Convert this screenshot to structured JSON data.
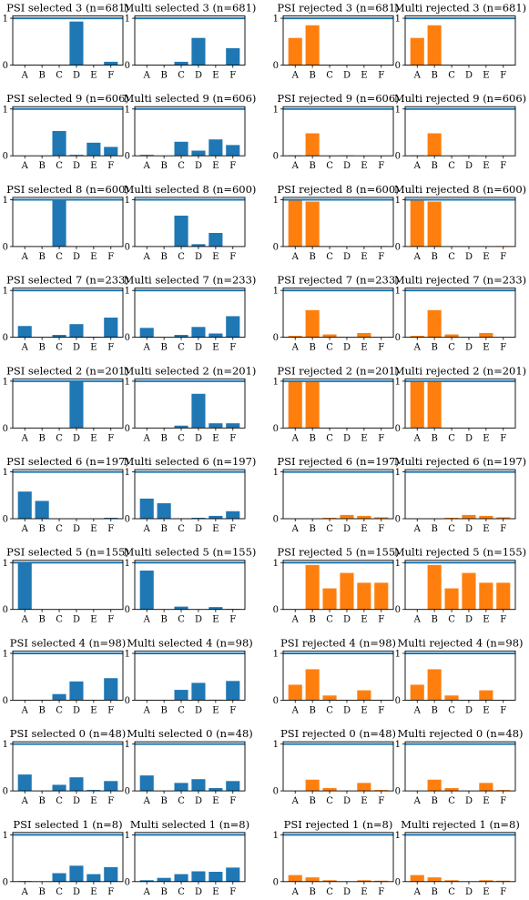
{
  "figure": {
    "colors": {
      "selected": "#1f77b4",
      "rejected": "#ff7f0e",
      "refline": "#1f77b4"
    }
  },
  "chart_data": [
    {
      "type": "bar",
      "title": "PSI selected 3 (n=681)",
      "categories": [
        "A",
        "B",
        "C",
        "D",
        "E",
        "F"
      ],
      "values": [
        0,
        0,
        0,
        0.93,
        0,
        0.07
      ],
      "ylim": [
        0,
        1.05
      ],
      "yticks": [
        0,
        1
      ],
      "color": "selected"
    },
    {
      "type": "bar",
      "title": "Multi selected 3 (n=681)",
      "categories": [
        "A",
        "B",
        "C",
        "D",
        "E",
        "F"
      ],
      "values": [
        0,
        0,
        0.07,
        0.58,
        0,
        0.36
      ],
      "ylim": [
        0,
        1.05
      ],
      "yticks": [
        0,
        1
      ],
      "color": "selected"
    },
    {
      "type": "bar",
      "title": "PSI rejected 3 (n=681)",
      "categories": [
        "A",
        "B",
        "C",
        "D",
        "E",
        "F"
      ],
      "values": [
        0.58,
        0.85,
        0,
        0,
        0,
        0
      ],
      "ylim": [
        0,
        1.05
      ],
      "yticks": [
        0,
        1
      ],
      "color": "rejected"
    },
    {
      "type": "bar",
      "title": "Multi rejected 3 (n=681)",
      "categories": [
        "A",
        "B",
        "C",
        "D",
        "E",
        "F"
      ],
      "values": [
        0.58,
        0.85,
        0,
        0,
        0,
        0
      ],
      "ylim": [
        0,
        1.05
      ],
      "yticks": [
        0,
        1
      ],
      "color": "rejected"
    },
    {
      "type": "bar",
      "title": "PSI selected 9 (n=606)",
      "categories": [
        "A",
        "B",
        "C",
        "D",
        "E",
        "F"
      ],
      "values": [
        0,
        0,
        0.53,
        0.02,
        0.28,
        0.19
      ],
      "ylim": [
        0,
        1.05
      ],
      "yticks": [
        0,
        1
      ],
      "color": "selected"
    },
    {
      "type": "bar",
      "title": "Multi selected 9 (n=606)",
      "categories": [
        "A",
        "B",
        "C",
        "D",
        "E",
        "F"
      ],
      "values": [
        0.02,
        0,
        0.3,
        0.11,
        0.35,
        0.23
      ],
      "ylim": [
        0,
        1.05
      ],
      "yticks": [
        0,
        1
      ],
      "color": "selected"
    },
    {
      "type": "bar",
      "title": "PSI rejected 9 (n=606)",
      "categories": [
        "A",
        "B",
        "C",
        "D",
        "E",
        "F"
      ],
      "values": [
        0.01,
        0.48,
        0,
        0.01,
        0,
        0
      ],
      "ylim": [
        0,
        1.05
      ],
      "yticks": [
        0,
        1
      ],
      "color": "rejected"
    },
    {
      "type": "bar",
      "title": "Multi rejected 9 (n=606)",
      "categories": [
        "A",
        "B",
        "C",
        "D",
        "E",
        "F"
      ],
      "values": [
        0.01,
        0.48,
        0,
        0.01,
        0,
        0
      ],
      "ylim": [
        0,
        1.05
      ],
      "yticks": [
        0,
        1
      ],
      "color": "rejected"
    },
    {
      "type": "bar",
      "title": "PSI selected 8 (n=600)",
      "categories": [
        "A",
        "B",
        "C",
        "D",
        "E",
        "F"
      ],
      "values": [
        0,
        0,
        1.0,
        0,
        0,
        0
      ],
      "ylim": [
        0,
        1.05
      ],
      "yticks": [
        0,
        1
      ],
      "color": "selected"
    },
    {
      "type": "bar",
      "title": "Multi selected 8 (n=600)",
      "categories": [
        "A",
        "B",
        "C",
        "D",
        "E",
        "F"
      ],
      "values": [
        0,
        0,
        0.66,
        0.05,
        0.29,
        0
      ],
      "ylim": [
        0,
        1.05
      ],
      "yticks": [
        0,
        1
      ],
      "color": "selected"
    },
    {
      "type": "bar",
      "title": "PSI rejected 8 (n=600)",
      "categories": [
        "A",
        "B",
        "C",
        "D",
        "E",
        "F"
      ],
      "values": [
        1.0,
        0.96,
        0,
        0,
        0,
        0.01
      ],
      "ylim": [
        0,
        1.05
      ],
      "yticks": [
        0,
        1
      ],
      "color": "rejected"
    },
    {
      "type": "bar",
      "title": "Multi rejected 8 (n=600)",
      "categories": [
        "A",
        "B",
        "C",
        "D",
        "E",
        "F"
      ],
      "values": [
        1.0,
        0.96,
        0,
        0,
        0,
        0.01
      ],
      "ylim": [
        0,
        1.05
      ],
      "yticks": [
        0,
        1
      ],
      "color": "rejected"
    },
    {
      "type": "bar",
      "title": "PSI selected 7 (n=233)",
      "categories": [
        "A",
        "B",
        "C",
        "D",
        "E",
        "F"
      ],
      "values": [
        0.24,
        0,
        0.05,
        0.28,
        0.01,
        0.42
      ],
      "ylim": [
        0,
        1.05
      ],
      "yticks": [
        0,
        1
      ],
      "color": "selected"
    },
    {
      "type": "bar",
      "title": "Multi selected 7 (n=233)",
      "categories": [
        "A",
        "B",
        "C",
        "D",
        "E",
        "F"
      ],
      "values": [
        0.2,
        0,
        0.05,
        0.22,
        0.08,
        0.45
      ],
      "ylim": [
        0,
        1.05
      ],
      "yticks": [
        0,
        1
      ],
      "color": "selected"
    },
    {
      "type": "bar",
      "title": "PSI rejected 7 (n=233)",
      "categories": [
        "A",
        "B",
        "C",
        "D",
        "E",
        "F"
      ],
      "values": [
        0.03,
        0.58,
        0.06,
        0,
        0.09,
        0
      ],
      "ylim": [
        0,
        1.05
      ],
      "yticks": [
        0,
        1
      ],
      "color": "rejected"
    },
    {
      "type": "bar",
      "title": "Multi rejected 7 (n=233)",
      "categories": [
        "A",
        "B",
        "C",
        "D",
        "E",
        "F"
      ],
      "values": [
        0.03,
        0.58,
        0.06,
        0,
        0.09,
        0
      ],
      "ylim": [
        0,
        1.05
      ],
      "yticks": [
        0,
        1
      ],
      "color": "rejected"
    },
    {
      "type": "bar",
      "title": "PSI selected 2 (n=201)",
      "categories": [
        "A",
        "B",
        "C",
        "D",
        "E",
        "F"
      ],
      "values": [
        0,
        0,
        0,
        1.0,
        0,
        0
      ],
      "ylim": [
        0,
        1.05
      ],
      "yticks": [
        0,
        1
      ],
      "color": "selected"
    },
    {
      "type": "bar",
      "title": "Multi selected 2 (n=201)",
      "categories": [
        "A",
        "B",
        "C",
        "D",
        "E",
        "F"
      ],
      "values": [
        0,
        0,
        0.05,
        0.73,
        0.1,
        0.1
      ],
      "ylim": [
        0,
        1.05
      ],
      "yticks": [
        0,
        1
      ],
      "color": "selected"
    },
    {
      "type": "bar",
      "title": "PSI rejected 2 (n=201)",
      "categories": [
        "A",
        "B",
        "C",
        "D",
        "E",
        "F"
      ],
      "values": [
        1.0,
        1.0,
        0,
        0,
        0,
        0
      ],
      "ylim": [
        0,
        1.05
      ],
      "yticks": [
        0,
        1
      ],
      "color": "rejected"
    },
    {
      "type": "bar",
      "title": "Multi rejected 2 (n=201)",
      "categories": [
        "A",
        "B",
        "C",
        "D",
        "E",
        "F"
      ],
      "values": [
        1.0,
        1.0,
        0,
        0,
        0,
        0
      ],
      "ylim": [
        0,
        1.05
      ],
      "yticks": [
        0,
        1
      ],
      "color": "rejected"
    },
    {
      "type": "bar",
      "title": "PSI selected 6 (n=197)",
      "categories": [
        "A",
        "B",
        "C",
        "D",
        "E",
        "F"
      ],
      "values": [
        0.58,
        0.38,
        0,
        0,
        0,
        0.02
      ],
      "ylim": [
        0,
        1.05
      ],
      "yticks": [
        0,
        1
      ],
      "color": "selected"
    },
    {
      "type": "bar",
      "title": "Multi selected 6 (n=197)",
      "categories": [
        "A",
        "B",
        "C",
        "D",
        "E",
        "F"
      ],
      "values": [
        0.43,
        0.33,
        0.01,
        0.02,
        0.06,
        0.16
      ],
      "ylim": [
        0,
        1.05
      ],
      "yticks": [
        0,
        1
      ],
      "color": "selected"
    },
    {
      "type": "bar",
      "title": "PSI rejected 6 (n=197)",
      "categories": [
        "A",
        "B",
        "C",
        "D",
        "E",
        "F"
      ],
      "values": [
        0,
        0,
        0.02,
        0.08,
        0.06,
        0.03
      ],
      "ylim": [
        0,
        1.05
      ],
      "yticks": [
        0,
        1
      ],
      "color": "rejected"
    },
    {
      "type": "bar",
      "title": "Multi rejected 6 (n=197)",
      "categories": [
        "A",
        "B",
        "C",
        "D",
        "E",
        "F"
      ],
      "values": [
        0,
        0,
        0.02,
        0.08,
        0.06,
        0.03
      ],
      "ylim": [
        0,
        1.05
      ],
      "yticks": [
        0,
        1
      ],
      "color": "rejected"
    },
    {
      "type": "bar",
      "title": "PSI selected 5 (n=155)",
      "categories": [
        "A",
        "B",
        "C",
        "D",
        "E",
        "F"
      ],
      "values": [
        1.0,
        0,
        0,
        0,
        0,
        0
      ],
      "ylim": [
        0,
        1.05
      ],
      "yticks": [
        0,
        1
      ],
      "color": "selected"
    },
    {
      "type": "bar",
      "title": "Multi selected 5 (n=155)",
      "categories": [
        "A",
        "B",
        "C",
        "D",
        "E",
        "F"
      ],
      "values": [
        0.83,
        0,
        0.06,
        0,
        0.05,
        0.01
      ],
      "ylim": [
        0,
        1.05
      ],
      "yticks": [
        0,
        1
      ],
      "color": "selected"
    },
    {
      "type": "bar",
      "title": "PSI rejected 5 (n=155)",
      "categories": [
        "A",
        "B",
        "C",
        "D",
        "E",
        "F"
      ],
      "values": [
        0,
        0.95,
        0.45,
        0.78,
        0.57,
        0.57
      ],
      "ylim": [
        0,
        1.05
      ],
      "yticks": [
        0,
        1
      ],
      "color": "rejected"
    },
    {
      "type": "bar",
      "title": "Multi rejected 5 (n=155)",
      "categories": [
        "A",
        "B",
        "C",
        "D",
        "E",
        "F"
      ],
      "values": [
        0,
        0.95,
        0.45,
        0.78,
        0.57,
        0.57
      ],
      "ylim": [
        0,
        1.05
      ],
      "yticks": [
        0,
        1
      ],
      "color": "rejected"
    },
    {
      "type": "bar",
      "title": "PSI selected 4 (n=98)",
      "categories": [
        "A",
        "B",
        "C",
        "D",
        "E",
        "F"
      ],
      "values": [
        0,
        0,
        0.13,
        0.4,
        0,
        0.47
      ],
      "ylim": [
        0,
        1.05
      ],
      "yticks": [
        0,
        1
      ],
      "color": "selected"
    },
    {
      "type": "bar",
      "title": "Multi selected 4 (n=98)",
      "categories": [
        "A",
        "B",
        "C",
        "D",
        "E",
        "F"
      ],
      "values": [
        0,
        0,
        0.22,
        0.37,
        0.01,
        0.41
      ],
      "ylim": [
        0,
        1.05
      ],
      "yticks": [
        0,
        1
      ],
      "color": "selected"
    },
    {
      "type": "bar",
      "title": "PSI rejected 4 (n=98)",
      "categories": [
        "A",
        "B",
        "C",
        "D",
        "E",
        "F"
      ],
      "values": [
        0.33,
        0.66,
        0.1,
        0,
        0.21,
        0
      ],
      "ylim": [
        0,
        1.05
      ],
      "yticks": [
        0,
        1
      ],
      "color": "rejected"
    },
    {
      "type": "bar",
      "title": "Multi rejected 4 (n=98)",
      "categories": [
        "A",
        "B",
        "C",
        "D",
        "E",
        "F"
      ],
      "values": [
        0.33,
        0.66,
        0.1,
        0,
        0.21,
        0
      ],
      "ylim": [
        0,
        1.05
      ],
      "yticks": [
        0,
        1
      ],
      "color": "rejected"
    },
    {
      "type": "bar",
      "title": "PSI selected 0 (n=48)",
      "categories": [
        "A",
        "B",
        "C",
        "D",
        "E",
        "F"
      ],
      "values": [
        0.35,
        0,
        0.13,
        0.29,
        0.02,
        0.21
      ],
      "ylim": [
        0,
        1.05
      ],
      "yticks": [
        0,
        1
      ],
      "color": "selected"
    },
    {
      "type": "bar",
      "title": "Multi selected 0 (n=48)",
      "categories": [
        "A",
        "B",
        "C",
        "D",
        "E",
        "F"
      ],
      "values": [
        0.33,
        0,
        0.17,
        0.25,
        0.06,
        0.21
      ],
      "ylim": [
        0,
        1.05
      ],
      "yticks": [
        0,
        1
      ],
      "color": "selected"
    },
    {
      "type": "bar",
      "title": "PSI rejected 0 (n=48)",
      "categories": [
        "A",
        "B",
        "C",
        "D",
        "E",
        "F"
      ],
      "values": [
        0,
        0.24,
        0.06,
        0,
        0.17,
        0.02
      ],
      "ylim": [
        0,
        1.05
      ],
      "yticks": [
        0,
        1
      ],
      "color": "rejected"
    },
    {
      "type": "bar",
      "title": "Multi rejected 0 (n=48)",
      "categories": [
        "A",
        "B",
        "C",
        "D",
        "E",
        "F"
      ],
      "values": [
        0,
        0.24,
        0.06,
        0,
        0.17,
        0.02
      ],
      "ylim": [
        0,
        1.05
      ],
      "yticks": [
        0,
        1
      ],
      "color": "rejected"
    },
    {
      "type": "bar",
      "title": "PSI selected 1 (n=8)",
      "categories": [
        "A",
        "B",
        "C",
        "D",
        "E",
        "F"
      ],
      "values": [
        0.01,
        0,
        0.18,
        0.34,
        0.16,
        0.31
      ],
      "ylim": [
        0,
        1.05
      ],
      "yticks": [
        0,
        1
      ],
      "color": "selected"
    },
    {
      "type": "bar",
      "title": "Multi selected 1 (n=8)",
      "categories": [
        "A",
        "B",
        "C",
        "D",
        "E",
        "F"
      ],
      "values": [
        0.03,
        0.08,
        0.16,
        0.22,
        0.21,
        0.3
      ],
      "ylim": [
        0,
        1.05
      ],
      "yticks": [
        0,
        1
      ],
      "color": "selected"
    },
    {
      "type": "bar",
      "title": "PSI rejected 1 (n=8)",
      "categories": [
        "A",
        "B",
        "C",
        "D",
        "E",
        "F"
      ],
      "values": [
        0.14,
        0.09,
        0.03,
        0,
        0.03,
        0.02
      ],
      "ylim": [
        0,
        1.05
      ],
      "yticks": [
        0,
        1
      ],
      "color": "rejected"
    },
    {
      "type": "bar",
      "title": "Multi rejected 1 (n=8)",
      "categories": [
        "A",
        "B",
        "C",
        "D",
        "E",
        "F"
      ],
      "values": [
        0.14,
        0.09,
        0.03,
        0,
        0.03,
        0.02
      ],
      "ylim": [
        0,
        1.05
      ],
      "yticks": [
        0,
        1
      ],
      "color": "rejected"
    }
  ]
}
